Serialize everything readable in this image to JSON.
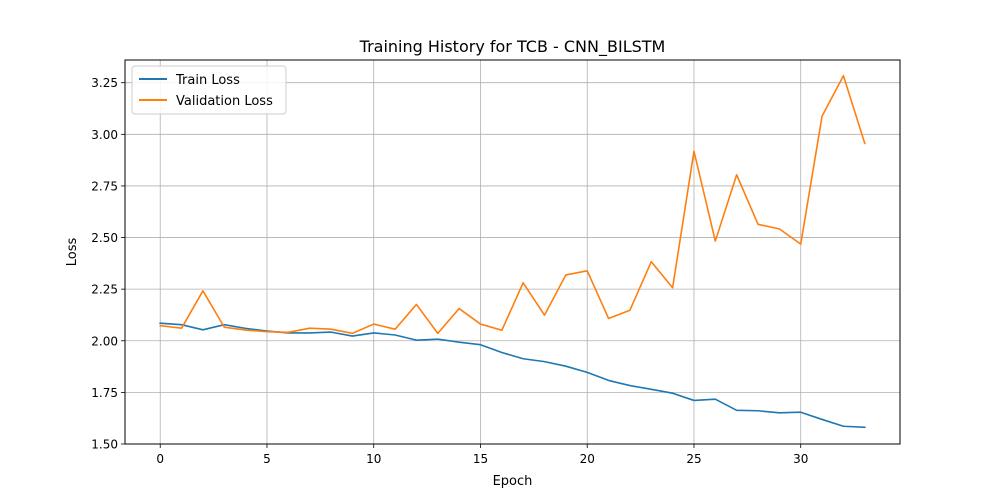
{
  "chart_data": {
    "type": "line",
    "title": "Training History for TCB - CNN_BILSTM",
    "xlabel": "Epoch",
    "ylabel": "Loss",
    "xlim": [
      -1.65,
      34.65
    ],
    "ylim": [
      1.5,
      3.36
    ],
    "xticks": [
      0,
      5,
      10,
      15,
      20,
      25,
      30
    ],
    "yticks": [
      1.5,
      1.75,
      2.0,
      2.25,
      2.5,
      2.75,
      3.0,
      3.25
    ],
    "ytick_labels": [
      "1.50",
      "1.75",
      "2.00",
      "2.25",
      "2.50",
      "2.75",
      "3.00",
      "3.25"
    ],
    "grid": true,
    "legend_position": "top-left",
    "x": [
      0,
      1,
      2,
      3,
      4,
      5,
      6,
      7,
      8,
      9,
      10,
      11,
      12,
      13,
      14,
      15,
      16,
      17,
      18,
      19,
      20,
      21,
      22,
      23,
      24,
      25,
      26,
      27,
      28,
      29,
      30,
      31,
      32,
      33
    ],
    "series": [
      {
        "name": "Train Loss",
        "color": "#1f77b4",
        "values": [
          2.085,
          2.078,
          2.053,
          2.078,
          2.06,
          2.047,
          2.038,
          2.038,
          2.042,
          2.023,
          2.038,
          2.028,
          2.003,
          2.008,
          1.993,
          1.981,
          1.943,
          1.913,
          1.899,
          1.877,
          1.847,
          1.808,
          1.783,
          1.765,
          1.746,
          1.711,
          1.717,
          1.663,
          1.661,
          1.651,
          1.654,
          1.619,
          1.586,
          1.581
        ]
      },
      {
        "name": "Validation Loss",
        "color": "#ff7f0e",
        "values": [
          2.073,
          2.061,
          2.242,
          2.066,
          2.052,
          2.044,
          2.041,
          2.061,
          2.056,
          2.036,
          2.081,
          2.056,
          2.176,
          2.036,
          2.156,
          2.081,
          2.051,
          2.281,
          2.124,
          2.319,
          2.339,
          2.108,
          2.148,
          2.383,
          2.257,
          2.918,
          2.483,
          2.804,
          2.564,
          2.542,
          2.468,
          3.088,
          3.284,
          2.956
        ]
      }
    ]
  }
}
